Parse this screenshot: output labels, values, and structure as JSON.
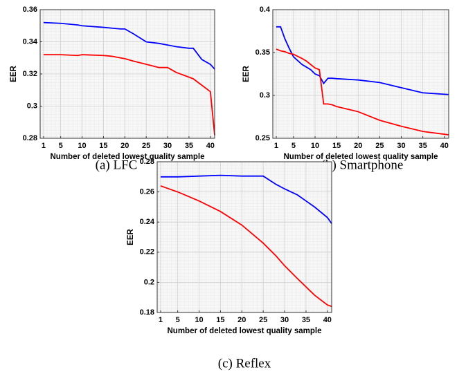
{
  "chart_data": [
    {
      "type": "line",
      "caption": "(a) LFC",
      "xlabel": "Number of deleted lowest quality sample",
      "ylabel": "EER",
      "x": [
        1,
        5,
        9,
        10,
        15,
        17,
        19,
        20,
        22,
        25,
        28,
        30,
        32,
        35,
        36,
        38,
        40,
        41
      ],
      "series": [
        {
          "color": "#0000ff",
          "values": [
            0.352,
            0.3515,
            0.3505,
            0.35,
            0.349,
            0.3485,
            0.348,
            0.348,
            0.345,
            0.34,
            0.339,
            0.338,
            0.337,
            0.336,
            0.336,
            0.329,
            0.326,
            0.323
          ]
        },
        {
          "color": "#ff0000",
          "values": [
            0.332,
            0.332,
            0.3315,
            0.332,
            0.3315,
            0.331,
            0.33,
            0.3295,
            0.328,
            0.326,
            0.324,
            0.324,
            0.321,
            0.318,
            0.317,
            0.313,
            0.309,
            0.282
          ]
        }
      ],
      "xlim": [
        0.2,
        41
      ],
      "xticks": [
        1,
        5,
        10,
        15,
        20,
        25,
        30,
        35,
        40
      ],
      "ylim": [
        0.28,
        0.36
      ],
      "yticks": [
        0.28,
        0.3,
        0.32,
        0.34,
        0.36
      ],
      "grid": true
    },
    {
      "type": "line",
      "caption": "(b) Smartphone",
      "xlabel": "Number of deleted lowest quality sample",
      "ylabel": "EER",
      "x": [
        1,
        2,
        3,
        4,
        5,
        7,
        8,
        9,
        10,
        11,
        12,
        13,
        14,
        15,
        20,
        25,
        30,
        35,
        41
      ],
      "series": [
        {
          "color": "#0000ff",
          "values": [
            0.38,
            0.38,
            0.366,
            0.355,
            0.345,
            0.336,
            0.333,
            0.33,
            0.325,
            0.323,
            0.314,
            0.32,
            0.32,
            0.3195,
            0.318,
            0.315,
            0.309,
            0.303,
            0.301
          ]
        },
        {
          "color": "#ff0000",
          "values": [
            0.354,
            0.352,
            0.351,
            0.349,
            0.348,
            0.343,
            0.34,
            0.336,
            0.332,
            0.33,
            0.29,
            0.29,
            0.289,
            0.287,
            0.281,
            0.271,
            0.264,
            0.258,
            0.254
          ]
        }
      ],
      "xlim": [
        0.2,
        41
      ],
      "xticks": [
        1,
        5,
        10,
        15,
        20,
        25,
        30,
        35,
        40
      ],
      "ylim": [
        0.25,
        0.4
      ],
      "yticks": [
        0.25,
        0.3,
        0.35,
        0.4
      ],
      "grid": true
    },
    {
      "type": "line",
      "caption": "(c) Reflex",
      "xlabel": "Number of deleted lowest quality sample",
      "ylabel": "EER",
      "x": [
        1,
        2,
        5,
        10,
        15,
        20,
        25,
        28,
        30,
        33,
        35,
        37,
        40,
        41
      ],
      "series": [
        {
          "color": "#0000ff",
          "values": [
            0.27,
            0.27,
            0.27,
            0.2705,
            0.271,
            0.2705,
            0.2705,
            0.265,
            0.262,
            0.258,
            0.254,
            0.25,
            0.243,
            0.239
          ]
        },
        {
          "color": "#ff0000",
          "values": [
            0.264,
            0.263,
            0.26,
            0.254,
            0.247,
            0.238,
            0.226,
            0.2175,
            0.211,
            0.2025,
            0.197,
            0.1915,
            0.185,
            0.184
          ]
        }
      ],
      "xlim": [
        0.2,
        41
      ],
      "xticks": [
        1,
        5,
        10,
        15,
        20,
        25,
        30,
        35,
        40
      ],
      "ylim": [
        0.18,
        0.28
      ],
      "yticks": [
        0.18,
        0.2,
        0.22,
        0.24,
        0.26,
        0.28
      ],
      "grid": true
    }
  ]
}
